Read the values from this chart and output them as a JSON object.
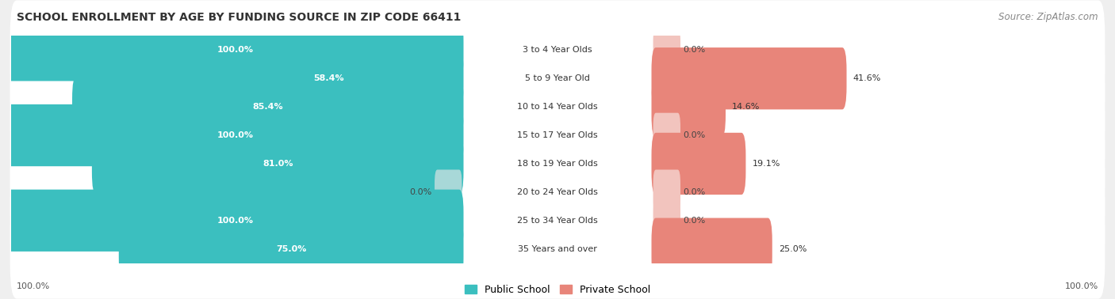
{
  "title": "SCHOOL ENROLLMENT BY AGE BY FUNDING SOURCE IN ZIP CODE 66411",
  "source": "Source: ZipAtlas.com",
  "categories": [
    "3 to 4 Year Olds",
    "5 to 9 Year Old",
    "10 to 14 Year Olds",
    "15 to 17 Year Olds",
    "18 to 19 Year Olds",
    "20 to 24 Year Olds",
    "25 to 34 Year Olds",
    "35 Years and over"
  ],
  "public_values": [
    100.0,
    58.4,
    85.4,
    100.0,
    81.0,
    0.0,
    100.0,
    75.0
  ],
  "private_values": [
    0.0,
    41.6,
    14.6,
    0.0,
    19.1,
    0.0,
    0.0,
    25.0
  ],
  "public_color": "#3bbfbf",
  "private_color": "#e8857a",
  "public_color_light": "#a8d8d8",
  "private_color_light": "#f2c4be",
  "bg_color": "#efefef",
  "row_bg_color": "#e0e0e0",
  "title_fontsize": 10,
  "source_fontsize": 8.5,
  "label_fontsize": 8,
  "cat_fontsize": 8,
  "tick_fontsize": 8,
  "legend_fontsize": 9,
  "x_left_label": "100.0%",
  "x_right_label": "100.0%"
}
